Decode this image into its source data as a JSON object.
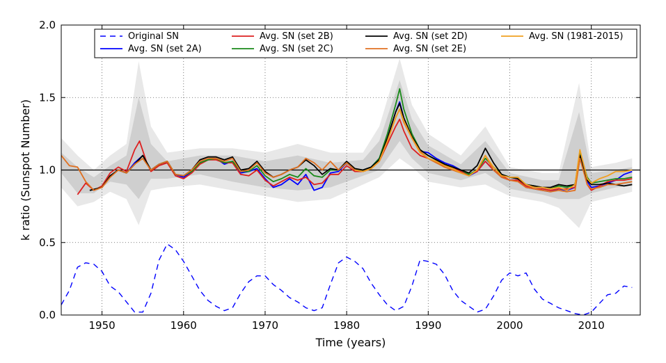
{
  "chart_data": {
    "type": "line",
    "title": "",
    "xlabel": "Time (years)",
    "ylabel": "k ratio (Sunspot Number)",
    "xlim": [
      1945,
      2016
    ],
    "ylim": [
      0.0,
      2.0
    ],
    "xticks": [
      1950,
      1960,
      1970,
      1980,
      1990,
      2000,
      2010
    ],
    "xtick_labels": [
      "1950",
      "1960",
      "1970",
      "1980",
      "1990",
      "2000",
      "2010"
    ],
    "yticks": [
      0.0,
      0.5,
      1.0,
      1.5,
      2.0
    ],
    "ytick_labels": [
      "0.0",
      "0.5",
      "1.0",
      "1.5",
      "2.0"
    ],
    "grid": true,
    "reference_line": 1.0,
    "legend_position": "top",
    "bands": [
      {
        "name": "outer",
        "color": "#e8e8e8",
        "x": [
          1945,
          1947,
          1949,
          1951,
          1953,
          1954.5,
          1956,
          1958,
          1962,
          1966,
          1970,
          1974,
          1978,
          1982,
          1984,
          1986.5,
          1988,
          1990,
          1994,
          1997,
          2000,
          2004,
          2006,
          2008.5,
          2010,
          2013,
          2015
        ],
        "upper": [
          1.22,
          1.1,
          1.0,
          1.1,
          1.18,
          1.75,
          1.3,
          1.12,
          1.15,
          1.15,
          1.12,
          1.18,
          1.12,
          1.12,
          1.3,
          1.77,
          1.45,
          1.25,
          1.1,
          1.3,
          1.02,
          0.98,
          0.98,
          1.6,
          1.02,
          1.05,
          1.08
        ],
        "lower": [
          0.88,
          0.75,
          0.78,
          0.85,
          0.8,
          0.62,
          0.86,
          0.88,
          0.9,
          0.86,
          0.82,
          0.78,
          0.8,
          0.9,
          0.95,
          1.08,
          1.02,
          0.92,
          0.88,
          0.9,
          0.82,
          0.78,
          0.74,
          0.6,
          0.78,
          0.82,
          0.85
        ]
      },
      {
        "name": "inner",
        "color": "#cfcfcf",
        "x": [
          1945,
          1947,
          1949,
          1951,
          1953,
          1954.5,
          1956,
          1958,
          1962,
          1966,
          1970,
          1974,
          1978,
          1982,
          1984,
          1986.5,
          1988,
          1990,
          1994,
          1997,
          2000,
          2004,
          2006,
          2008.5,
          2010,
          2013,
          2015
        ],
        "upper": [
          1.12,
          1.02,
          0.95,
          1.03,
          1.1,
          1.5,
          1.18,
          1.06,
          1.1,
          1.1,
          1.06,
          1.1,
          1.05,
          1.07,
          1.2,
          1.62,
          1.35,
          1.17,
          1.04,
          1.2,
          0.98,
          0.93,
          0.93,
          1.4,
          0.98,
          1.0,
          1.02
        ],
        "lower": [
          0.98,
          0.84,
          0.84,
          0.92,
          0.9,
          0.8,
          0.94,
          0.94,
          0.97,
          0.92,
          0.88,
          0.86,
          0.88,
          0.96,
          1.0,
          1.2,
          1.08,
          0.98,
          0.93,
          0.98,
          0.87,
          0.83,
          0.8,
          0.8,
          0.84,
          0.88,
          0.89
        ]
      }
    ],
    "series": [
      {
        "name": "Original SN",
        "color": "#0000ff",
        "dash": "8,6",
        "x": [
          1945,
          1946,
          1947,
          1948,
          1949,
          1950,
          1951,
          1952,
          1953,
          1954,
          1955,
          1956,
          1957,
          1958,
          1959,
          1960,
          1961,
          1962,
          1963,
          1964,
          1965,
          1966,
          1967,
          1968,
          1969,
          1970,
          1971,
          1972,
          1973,
          1974,
          1975,
          1976,
          1977,
          1978,
          1979,
          1980,
          1981,
          1982,
          1983,
          1984,
          1985,
          1986,
          1987,
          1988,
          1989,
          1990,
          1991,
          1992,
          1993,
          1994,
          1995,
          1996,
          1997,
          1998,
          1999,
          2000,
          2001,
          2002,
          2003,
          2004,
          2005,
          2006,
          2007,
          2008,
          2009,
          2010,
          2011,
          2012,
          2013,
          2014,
          2015
        ],
        "values": [
          0.07,
          0.17,
          0.33,
          0.36,
          0.35,
          0.3,
          0.2,
          0.16,
          0.09,
          0.02,
          0.02,
          0.15,
          0.38,
          0.49,
          0.45,
          0.37,
          0.27,
          0.17,
          0.1,
          0.06,
          0.03,
          0.05,
          0.15,
          0.23,
          0.27,
          0.27,
          0.21,
          0.17,
          0.12,
          0.09,
          0.05,
          0.03,
          0.05,
          0.21,
          0.36,
          0.4,
          0.37,
          0.32,
          0.22,
          0.14,
          0.07,
          0.03,
          0.06,
          0.2,
          0.38,
          0.37,
          0.35,
          0.28,
          0.17,
          0.1,
          0.06,
          0.02,
          0.04,
          0.13,
          0.24,
          0.29,
          0.27,
          0.29,
          0.18,
          0.11,
          0.08,
          0.05,
          0.03,
          0.01,
          0.0,
          0.02,
          0.08,
          0.14,
          0.15,
          0.2,
          0.19
        ]
      },
      {
        "name": "Avg. SN (set 2A)",
        "color": "#0000ff",
        "dash": "",
        "x": [
          1948.5,
          1950,
          1951,
          1952,
          1953,
          1954,
          1955,
          1956,
          1957,
          1958,
          1959,
          1960,
          1961,
          1962,
          1963,
          1964,
          1965,
          1966,
          1967,
          1968,
          1969,
          1970,
          1971,
          1972,
          1973,
          1974,
          1975,
          1976,
          1977,
          1978,
          1979,
          1980,
          1981,
          1982,
          1983,
          1984,
          1985,
          1986,
          1986.5,
          1987,
          1988,
          1989,
          1990,
          1991,
          1992,
          1993,
          1994,
          1995,
          1996,
          1997,
          1998,
          1999,
          2000,
          2001,
          2002,
          2003,
          2004,
          2005,
          2006,
          2007,
          2008,
          2008.6,
          2009.5,
          2010,
          2011,
          2012,
          2013,
          2014,
          2015
        ],
        "values": [
          0.86,
          0.88,
          0.96,
          1.0,
          0.98,
          1.05,
          1.1,
          1.0,
          1.04,
          1.05,
          0.97,
          0.95,
          0.99,
          1.05,
          1.07,
          1.08,
          1.04,
          1.06,
          0.98,
          0.99,
          1.01,
          0.94,
          0.88,
          0.9,
          0.94,
          0.9,
          0.97,
          0.86,
          0.88,
          0.98,
          0.99,
          1.05,
          1.0,
          1.0,
          1.02,
          1.08,
          1.22,
          1.4,
          1.47,
          1.36,
          1.22,
          1.13,
          1.12,
          1.08,
          1.05,
          1.03,
          1.0,
          0.96,
          0.99,
          1.06,
          1.0,
          0.95,
          0.93,
          0.93,
          0.88,
          0.87,
          0.86,
          0.85,
          0.87,
          0.86,
          0.88,
          1.08,
          0.92,
          0.88,
          0.89,
          0.91,
          0.93,
          0.97,
          0.99
        ]
      },
      {
        "name": "Avg. SN (set 2B)",
        "color": "#dd2020",
        "dash": "",
        "x": [
          1947,
          1948,
          1949,
          1950,
          1951,
          1952,
          1953,
          1954,
          1954.6,
          1955.5,
          1956,
          1957,
          1958,
          1959,
          1960,
          1961,
          1962,
          1963,
          1964,
          1965,
          1966,
          1967,
          1968,
          1969,
          1970,
          1971,
          1972,
          1973,
          1974,
          1975,
          1976,
          1977,
          1978,
          1979,
          1980,
          1981,
          1982,
          1983,
          1984,
          1985,
          1986,
          1986.5,
          1987,
          1988,
          1989,
          1990,
          1991,
          1992,
          1993,
          1994,
          1995,
          1996,
          1997,
          1998,
          1999,
          2000,
          2001,
          2002,
          2003,
          2004,
          2005,
          2006,
          2007,
          2008,
          2008.6,
          2009.5,
          2010,
          2011,
          2012,
          2013,
          2014,
          2015
        ],
        "values": [
          0.83,
          0.91,
          0.86,
          0.89,
          0.98,
          1.02,
          0.99,
          1.14,
          1.2,
          1.05,
          0.99,
          1.03,
          1.05,
          0.96,
          0.94,
          0.98,
          1.04,
          1.07,
          1.07,
          1.05,
          1.05,
          0.97,
          0.96,
          1.0,
          0.93,
          0.89,
          0.92,
          0.95,
          0.93,
          0.95,
          0.9,
          0.91,
          0.97,
          0.97,
          1.03,
          0.99,
          0.99,
          1.01,
          1.06,
          1.18,
          1.3,
          1.35,
          1.27,
          1.15,
          1.1,
          1.08,
          1.05,
          1.03,
          1.02,
          0.99,
          0.97,
          0.99,
          1.06,
          1.0,
          0.96,
          0.93,
          0.93,
          0.89,
          0.87,
          0.87,
          0.86,
          0.87,
          0.87,
          0.88,
          1.1,
          0.9,
          0.86,
          0.89,
          0.92,
          0.93,
          0.93,
          0.94
        ]
      },
      {
        "name": "Avg. SN (set 2C)",
        "color": "#1a8a1a",
        "dash": "",
        "x": [
          1948.5,
          1950,
          1951,
          1952,
          1953,
          1954,
          1955,
          1956,
          1957,
          1958,
          1959,
          1960,
          1961,
          1962,
          1963,
          1964,
          1965,
          1966,
          1967,
          1968,
          1969,
          1970,
          1971,
          1972,
          1973,
          1974,
          1975,
          1976,
          1977,
          1978,
          1979,
          1980,
          1981,
          1982,
          1983,
          1984,
          1985,
          1986,
          1986.5,
          1987,
          1988,
          1989,
          1990,
          1991,
          1992,
          1993,
          1994,
          1995,
          1996,
          1997,
          1998,
          1999,
          2000,
          2001,
          2002,
          2003,
          2004,
          2005,
          2006,
          2007,
          2008,
          2008.6,
          2009.5,
          2010,
          2011,
          2012,
          2013,
          2014,
          2015
        ],
        "values": [
          0.86,
          0.88,
          0.96,
          1.0,
          0.98,
          1.04,
          1.1,
          1.0,
          1.04,
          1.06,
          0.97,
          0.96,
          0.99,
          1.05,
          1.07,
          1.08,
          1.05,
          1.06,
          0.99,
          0.99,
          1.03,
          0.96,
          0.92,
          0.94,
          0.97,
          0.95,
          1.01,
          0.96,
          0.95,
          1.0,
          1.0,
          1.05,
          1.0,
          1.0,
          1.02,
          1.08,
          1.25,
          1.45,
          1.56,
          1.42,
          1.25,
          1.14,
          1.1,
          1.07,
          1.04,
          1.02,
          1.0,
          0.97,
          1.0,
          1.08,
          1.02,
          0.97,
          0.95,
          0.94,
          0.9,
          0.89,
          0.88,
          0.87,
          0.89,
          0.88,
          0.9,
          1.12,
          0.95,
          0.91,
          0.92,
          0.93,
          0.94,
          0.94,
          0.95
        ]
      },
      {
        "name": "Avg. SN (set 2D)",
        "color": "#000000",
        "dash": "",
        "x": [
          1948.5,
          1950,
          1951,
          1952,
          1953,
          1954,
          1955,
          1956,
          1957,
          1958,
          1959,
          1960,
          1961,
          1962,
          1963,
          1964,
          1965,
          1966,
          1967,
          1968,
          1969,
          1970,
          1971,
          1972,
          1973,
          1974,
          1975,
          1976,
          1977,
          1978,
          1979,
          1980,
          1981,
          1982,
          1983,
          1984,
          1985,
          1986,
          1986.5,
          1987,
          1988,
          1989,
          1990,
          1991,
          1992,
          1993,
          1994,
          1995,
          1996,
          1997,
          1998,
          1999,
          2000,
          2001,
          2002,
          2003,
          2004,
          2005,
          2006,
          2007,
          2008,
          2008.6,
          2009.5,
          2010,
          2011,
          2012,
          2013,
          2014,
          2015
        ],
        "values": [
          0.86,
          0.88,
          0.96,
          1.0,
          0.98,
          1.04,
          1.1,
          1.0,
          1.04,
          1.06,
          0.97,
          0.96,
          1.0,
          1.07,
          1.09,
          1.09,
          1.07,
          1.09,
          1.0,
          1.01,
          1.06,
          0.99,
          0.95,
          0.97,
          1.0,
          1.02,
          1.07,
          1.03,
          0.97,
          1.01,
          1.0,
          1.06,
          1.01,
          1.0,
          1.02,
          1.07,
          1.22,
          1.4,
          1.46,
          1.36,
          1.23,
          1.14,
          1.1,
          1.07,
          1.04,
          1.02,
          1.0,
          0.98,
          1.03,
          1.15,
          1.05,
          0.97,
          0.95,
          0.94,
          0.9,
          0.89,
          0.88,
          0.88,
          0.9,
          0.89,
          0.9,
          1.1,
          0.93,
          0.9,
          0.9,
          0.91,
          0.9,
          0.89,
          0.9
        ]
      },
      {
        "name": "Avg. SN (set 2E)",
        "color": "#e07020",
        "dash": "",
        "x": [
          1945,
          1946,
          1947,
          1948,
          1949,
          1950,
          1951,
          1952,
          1953,
          1954,
          1955,
          1956,
          1957,
          1958,
          1959,
          1960,
          1961,
          1962,
          1963,
          1964,
          1965,
          1966,
          1967,
          1968,
          1969,
          1970,
          1971,
          1972,
          1973,
          1974,
          1975,
          1976,
          1977,
          1978,
          1979,
          1980,
          1981,
          1982,
          1983,
          1984,
          1985,
          1986,
          1986.5,
          1987,
          1988,
          1989,
          1990,
          1991,
          1992,
          1993,
          1994,
          1995,
          1996,
          1997,
          1998,
          1999,
          2000,
          2001,
          2002,
          2003,
          2004,
          2005,
          2006,
          2007,
          2008,
          2008.6,
          2009.5,
          2010,
          2011,
          2012,
          2013,
          2014,
          2015
        ],
        "values": [
          1.1,
          1.03,
          1.02,
          0.92,
          0.86,
          0.88,
          0.95,
          1.0,
          0.98,
          1.04,
          1.08,
          1.0,
          1.04,
          1.06,
          0.97,
          0.96,
          1.0,
          1.06,
          1.08,
          1.08,
          1.06,
          1.08,
          0.99,
          1.0,
          1.05,
          0.98,
          0.95,
          0.97,
          1.0,
          1.02,
          1.08,
          1.05,
          1.0,
          1.06,
          1.0,
          1.05,
          1.0,
          0.99,
          1.01,
          1.06,
          1.2,
          1.36,
          1.42,
          1.33,
          1.22,
          1.13,
          1.08,
          1.05,
          1.02,
          1.0,
          0.98,
          0.96,
          1.0,
          1.1,
          1.0,
          0.95,
          0.93,
          0.92,
          0.88,
          0.87,
          0.86,
          0.85,
          0.86,
          0.85,
          0.86,
          1.08,
          0.9,
          0.87,
          0.88,
          0.9,
          0.9,
          0.91,
          0.92
        ]
      },
      {
        "name": "Avg. SN (1981-2015)",
        "color": "#f0a020",
        "dash": "",
        "x": [
          1981,
          1982,
          1983,
          1984,
          1985,
          1986,
          1986.5,
          1987,
          1988,
          1989,
          1990,
          1991,
          1992,
          1993,
          1994,
          1995,
          1996,
          1997,
          1998,
          1999,
          2000,
          2001,
          2002,
          2003,
          2004,
          2005,
          2006,
          2007,
          2008,
          2008.6,
          2009.5,
          2010,
          2011,
          2012,
          2013,
          2014,
          2015
        ],
        "values": [
          1.0,
          0.99,
          1.01,
          1.06,
          1.2,
          1.36,
          1.42,
          1.34,
          1.22,
          1.12,
          1.08,
          1.06,
          1.03,
          1.01,
          0.98,
          0.96,
          1.0,
          1.1,
          1.02,
          0.96,
          0.95,
          0.95,
          0.9,
          0.88,
          0.88,
          0.87,
          0.88,
          0.86,
          0.9,
          1.14,
          0.94,
          0.91,
          0.94,
          0.96,
          0.99,
          0.99,
          1.0
        ]
      }
    ],
    "legend_entries": [
      "Original SN",
      "Avg. SN (set 2A)",
      "Avg. SN (set 2B)",
      "Avg. SN (set 2C)",
      "Avg. SN (set 2D)",
      "Avg. SN (set 2E)",
      "Avg. SN (1981-2015)"
    ]
  }
}
